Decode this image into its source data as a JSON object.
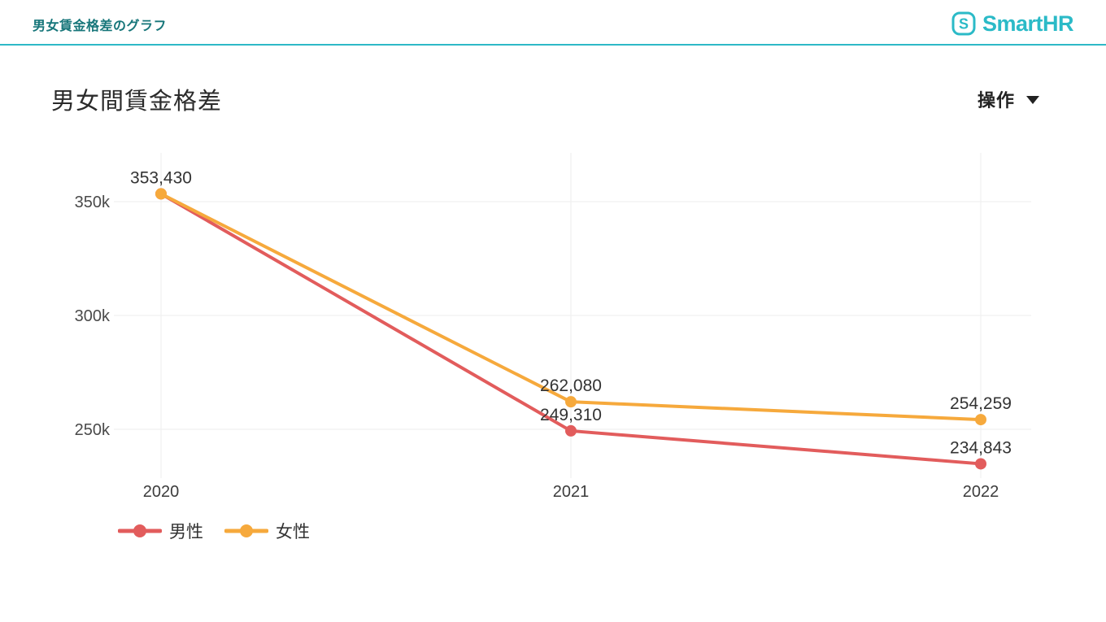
{
  "header": {
    "title": "男女賃金格差のグラフ",
    "logo": {
      "text": "SmartHR",
      "icon_letter": "S"
    }
  },
  "page": {
    "title": "男女間賃金格差",
    "actions_button": "操作"
  },
  "colors": {
    "brand": "#2bbac7",
    "header_title": "#17767a",
    "male": "#e25c5c",
    "female": "#f6a93c",
    "grid": "#ededed",
    "axis_label": "#4a4a4a",
    "data_label": "#333333"
  },
  "chart_data": {
    "type": "line",
    "x": [
      "2020",
      "2021",
      "2022"
    ],
    "series": [
      {
        "name": "男性",
        "color_key": "male",
        "values": [
          353430,
          249310,
          234843
        ],
        "point_labels": [
          "",
          "249,310",
          "234,843"
        ]
      },
      {
        "name": "女性",
        "color_key": "female",
        "values": [
          353430,
          262080,
          254259
        ],
        "point_labels": [
          "353,430",
          "262,080",
          "254,259"
        ]
      }
    ],
    "y_ticks": [
      {
        "value": 250000,
        "label": "250k"
      },
      {
        "value": 300000,
        "label": "300k"
      },
      {
        "value": 350000,
        "label": "350k"
      }
    ],
    "ylim": [
      228000,
      368000
    ],
    "grid": true,
    "legend_position": "bottom-left"
  },
  "legend": {
    "items": [
      {
        "label": "男性",
        "color_key": "male"
      },
      {
        "label": "女性",
        "color_key": "female"
      }
    ]
  }
}
